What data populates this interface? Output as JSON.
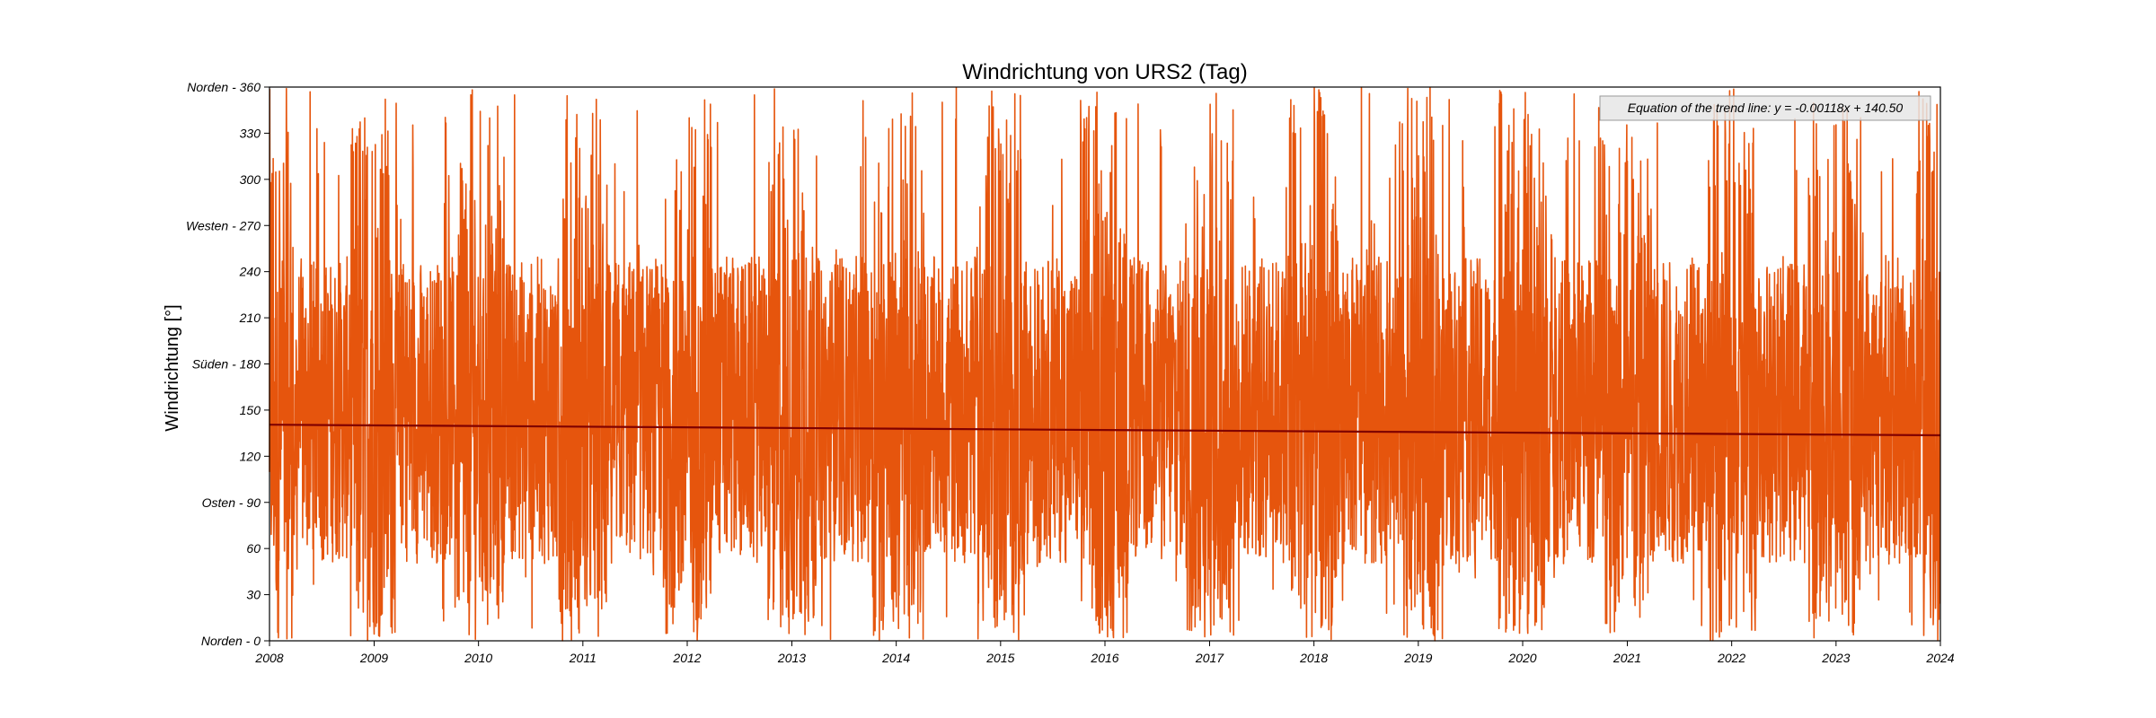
{
  "chart_data": {
    "type": "line",
    "title": "Windrichtung von URS2 (Tag)",
    "xlabel": "",
    "ylabel": "Windrichtung [°]",
    "xlim": [
      "2008-01-01",
      "2024-01-01"
    ],
    "ylim": [
      0,
      360
    ],
    "x_ticks": [
      "2008",
      "2009",
      "2010",
      "2011",
      "2012",
      "2013",
      "2014",
      "2015",
      "2016",
      "2017",
      "2018",
      "2019",
      "2020",
      "2021",
      "2022",
      "2023",
      "2024"
    ],
    "y_ticks": [
      {
        "value": 0,
        "label": "Norden - 0"
      },
      {
        "value": 30,
        "label": "30"
      },
      {
        "value": 60,
        "label": "60"
      },
      {
        "value": 90,
        "label": "Osten - 90"
      },
      {
        "value": 120,
        "label": "120"
      },
      {
        "value": 150,
        "label": "150"
      },
      {
        "value": 180,
        "label": "Süden - 180"
      },
      {
        "value": 210,
        "label": "210"
      },
      {
        "value": 240,
        "label": "240"
      },
      {
        "value": 270,
        "label": "Westen - 270"
      },
      {
        "value": 300,
        "label": "300"
      },
      {
        "value": 330,
        "label": "330"
      },
      {
        "value": 360,
        "label": "Norden - 360"
      }
    ],
    "grid": false,
    "series": [
      {
        "color": "#e6550d",
        "kind": "daily",
        "x_start": "2008-01-01",
        "x_end": "2023-12-31",
        "seasonal_pattern": "wide spread (about 0-360) in winter months, narrower band (about 60-240) in summer months"
      },
      {
        "color": "#800000",
        "kind": "trend",
        "x": [
          "2008-01-01",
          "2024-01-01"
        ],
        "y": [
          140.5,
          133.6
        ]
      }
    ],
    "annotation": {
      "text": "Equation of the trend line: y = -0.00118x + 140.50",
      "position": "top-right"
    }
  }
}
